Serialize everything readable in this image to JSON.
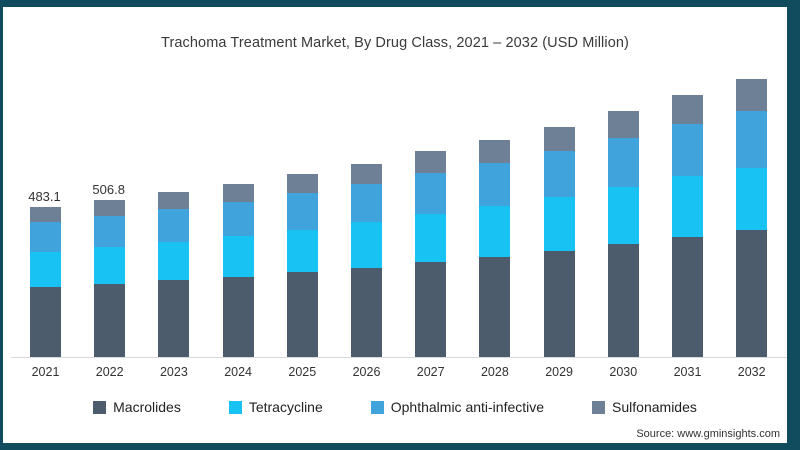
{
  "chart_data": {
    "type": "bar",
    "stacked": true,
    "title": "Trachoma Treatment Market, By Drug Class, 2021 – 2032 (USD Million)",
    "categories": [
      "2021",
      "2022",
      "2023",
      "2024",
      "2025",
      "2026",
      "2027",
      "2028",
      "2029",
      "2030",
      "2031",
      "2032"
    ],
    "series": [
      {
        "name": "Macrolides",
        "color": "#4d5c6c",
        "values": [
          225,
          236,
          247,
          259,
          273,
          288,
          307,
          323,
          342,
          364,
          387,
          410
        ]
      },
      {
        "name": "Tetracycline",
        "color": "#18c3f4",
        "values": [
          115,
          118,
          124,
          130,
          138,
          146,
          155,
          164,
          173,
          184,
          196,
          201
        ]
      },
      {
        "name": "Ophthalmic anti-infective",
        "color": "#40a3db",
        "values": [
          95,
          101,
          106,
          111,
          117,
          124,
          133,
          140,
          149,
          159,
          170,
          182
        ]
      },
      {
        "name": "Sulfonamides",
        "color": "#6e8095",
        "values": [
          48.1,
          51.8,
          55,
          58,
          62,
          65,
          70,
          74,
          79,
          85,
          91,
          104
        ]
      }
    ],
    "estimated_totals": [
      483.1,
      506.8,
      532,
      558,
      590,
      623,
      665,
      701,
      743,
      792,
      844,
      897
    ],
    "data_labels": {
      "2021": "483.1",
      "2022": "506.8"
    },
    "xlabel": "",
    "ylabel": "",
    "legend_position": "bottom",
    "gridlines": false,
    "axis_color": "#d9d9d9"
  },
  "source": {
    "text": "Source: www.gminsights.com"
  },
  "colors": {
    "frame": "#114c5e",
    "card_background": "#ffffff",
    "title_text": "#3a3a3a",
    "label_text": "#333333"
  }
}
